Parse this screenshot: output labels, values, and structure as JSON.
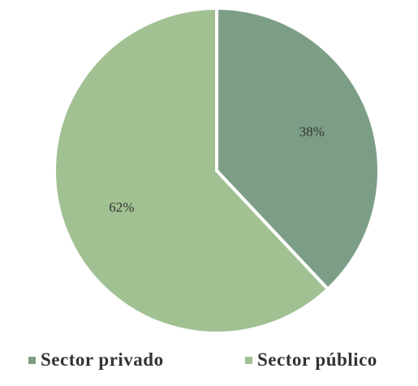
{
  "chart_data": {
    "type": "pie",
    "title": "",
    "slices": [
      {
        "label": "Sector privado",
        "value": 38,
        "display": "38%",
        "color": "#7d9e86"
      },
      {
        "label": "Sector público",
        "value": 62,
        "display": "62%",
        "color": "#a2c193"
      }
    ],
    "legend": {
      "position": "bottom",
      "items": [
        "Sector privado",
        "Sector público"
      ]
    },
    "start_angle": "12 o'clock",
    "direction": "clockwise"
  }
}
